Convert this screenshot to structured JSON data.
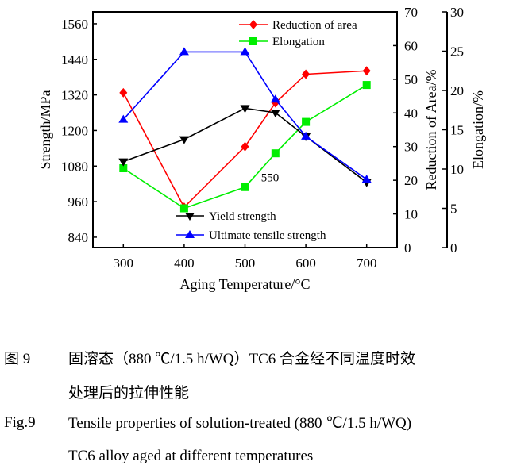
{
  "chart_data": {
    "type": "line",
    "xlabel": "Aging Temperature/°C",
    "ylabel_left": "Strength/MPa",
    "ylabel_right1": "Reduction of Area/%",
    "ylabel_right2": "Elongation/%",
    "x": [
      300,
      400,
      500,
      550,
      600,
      700
    ],
    "xticks": [
      300,
      400,
      500,
      600,
      700
    ],
    "xlim": [
      250,
      750
    ],
    "ylim_left": [
      805,
      1600
    ],
    "yticks_left": [
      840,
      960,
      1080,
      1200,
      1320,
      1440,
      1560
    ],
    "ylim_right1": [
      0,
      70
    ],
    "yticks_right1": [
      0,
      10,
      20,
      30,
      40,
      50,
      60,
      70
    ],
    "ylim_right2": [
      0,
      30
    ],
    "yticks_right2": [
      0,
      5,
      10,
      15,
      20,
      25,
      30
    ],
    "annotation": "550",
    "series": [
      {
        "name": "Reduction of area",
        "axis": "right1",
        "color": "#ff0000",
        "marker": "diamond",
        "values": [
          46,
          12,
          30,
          43,
          51.5,
          52.5
        ]
      },
      {
        "name": "Elongation",
        "axis": "right2",
        "color": "#00ee00",
        "marker": "square",
        "values": [
          10.1,
          5.0,
          7.7,
          12.0,
          16.0,
          20.7
        ]
      },
      {
        "name": "Yield strength",
        "axis": "left",
        "color": "#000000",
        "marker": "triangle-down",
        "values": [
          1095,
          1170,
          1275,
          1260,
          1180,
          1025
        ]
      },
      {
        "name": "Ultimate tensile strength",
        "axis": "left",
        "color": "#0000ff",
        "marker": "triangle-up",
        "values": [
          1237,
          1465,
          1465,
          1305,
          1180,
          1035
        ]
      }
    ],
    "legend": "top-right and bottom-center"
  },
  "caption": {
    "cn_label": "图 9",
    "cn_line1": "固溶态（880 ℃/1.5 h/WQ）TC6 合金经不同温度时效",
    "cn_line2": "处理后的拉伸性能",
    "en_label": "Fig.9",
    "en_line1": "Tensile properties of solution-treated (880 ℃/1.5 h/WQ)",
    "en_line2": "TC6 alloy aged at different temperatures"
  }
}
